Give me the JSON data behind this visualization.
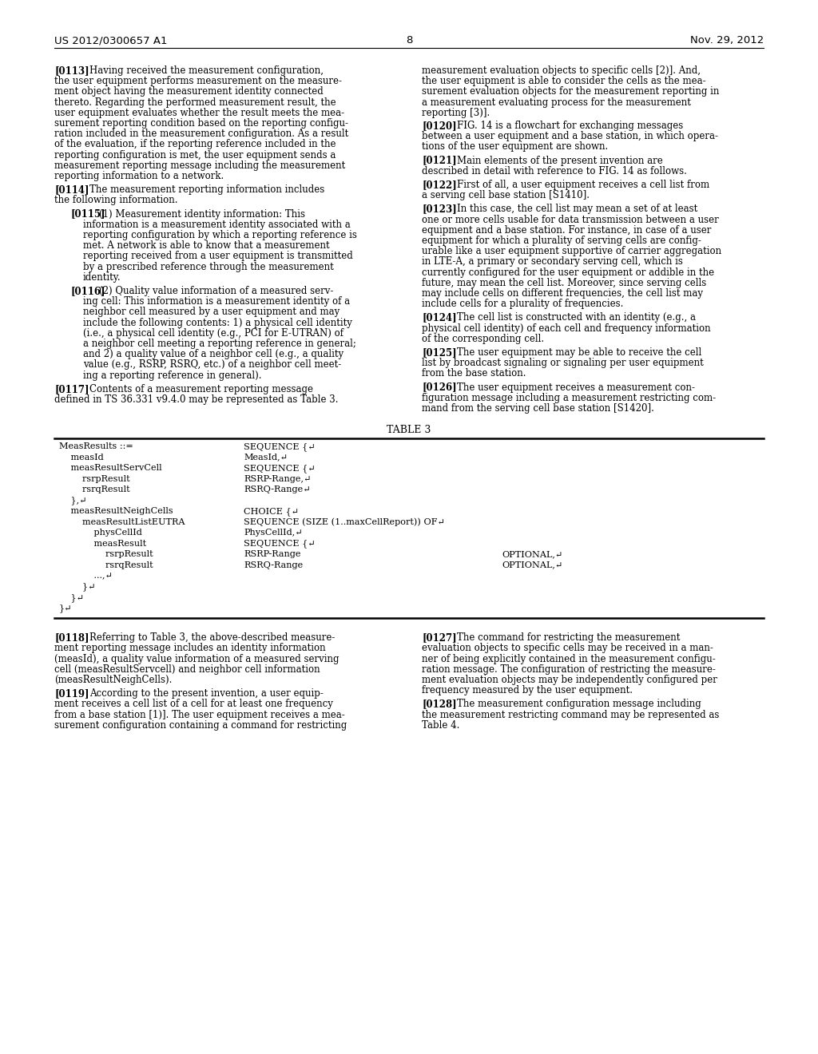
{
  "header_left": "US 2012/0300657 A1",
  "header_right": "Nov. 29, 2012",
  "page_number": "8",
  "left_column_prefix": [
    "measurement evaluation objects to specific cells [2)]. And,",
    "the user equipment is able to consider the cells as the mea-",
    "surement evaluation objects for the measurement reporting in",
    "a measurement evaluating process for the measurement",
    "reporting [3)]."
  ],
  "left_paragraphs": [
    {
      "tag": "[0113]",
      "indent": false,
      "lines": [
        "Having received the measurement configuration,",
        "the user equipment performs measurement on the measure-",
        "ment object having the measurement identity connected",
        "thereto. Regarding the performed measurement result, the",
        "user equipment evaluates whether the result meets the mea-",
        "surement reporting condition based on the reporting configu-",
        "ration included in the measurement configuration. As a result",
        "of the evaluation, if the reporting reference included in the",
        "reporting configuration is met, the user equipment sends a",
        "measurement reporting message including the measurement",
        "reporting information to a network."
      ]
    },
    {
      "tag": "[0114]",
      "indent": false,
      "lines": [
        "The measurement reporting information includes",
        "the following information."
      ]
    },
    {
      "tag": "[0115]",
      "indent": true,
      "lines": [
        "(1) Measurement identity information: This",
        "information is a measurement identity associated with a",
        "reporting configuration by which a reporting reference is",
        "met. A network is able to know that a measurement",
        "reporting received from a user equipment is transmitted",
        "by a prescribed reference through the measurement",
        "identity."
      ]
    },
    {
      "tag": "[0116]",
      "indent": true,
      "lines": [
        "(2) Quality value information of a measured serv-",
        "ing cell: This information is a measurement identity of a",
        "neighbor cell measured by a user equipment and may",
        "include the following contents: 1) a physical cell identity",
        "(i.e., a physical cell identity (e.g., PCI for E-UTRAN) of",
        "a neighbor cell meeting a reporting reference in general;",
        "and 2) a quality value of a neighbor cell (e.g., a quality",
        "value (e.g., RSRP, RSRQ, etc.) of a neighbor cell meet-",
        "ing a reporting reference in general)."
      ]
    },
    {
      "tag": "[0117]",
      "indent": false,
      "lines": [
        "Contents of a measurement reporting message",
        "defined in TS 36.331 v9.4.0 may be represented as Table 3."
      ]
    }
  ],
  "right_paragraphs": [
    {
      "tag": "",
      "indent": false,
      "lines": [
        "measurement evaluation objects to specific cells [2)]. And,",
        "the user equipment is able to consider the cells as the mea-",
        "surement evaluation objects for the measurement reporting in",
        "a measurement evaluating process for the measurement",
        "reporting [3)]."
      ]
    },
    {
      "tag": "[0120]",
      "indent": false,
      "lines": [
        "FIG. 14 is a flowchart for exchanging messages",
        "between a user equipment and a base station, in which opera-",
        "tions of the user equipment are shown."
      ]
    },
    {
      "tag": "[0121]",
      "indent": false,
      "lines": [
        "Main elements of the present invention are",
        "described in detail with reference to FIG. 14 as follows."
      ]
    },
    {
      "tag": "[0122]",
      "indent": false,
      "lines": [
        "First of all, a user equipment receives a cell list from",
        "a serving cell base station [S1410]."
      ]
    },
    {
      "tag": "[0123]",
      "indent": false,
      "lines": [
        "In this case, the cell list may mean a set of at least",
        "one or more cells usable for data transmission between a user",
        "equipment and a base station. For instance, in case of a user",
        "equipment for which a plurality of serving cells are config-",
        "urable like a user equipment supportive of carrier aggregation",
        "in LTE-A, a primary or secondary serving cell, which is",
        "currently configured for the user equipment or addible in the",
        "future, may mean the cell list. Moreover, since serving cells",
        "may include cells on different frequencies, the cell list may",
        "include cells for a plurality of frequencies."
      ]
    },
    {
      "tag": "[0124]",
      "indent": false,
      "lines": [
        "The cell list is constructed with an identity (e.g., a",
        "physical cell identity) of each cell and frequency information",
        "of the corresponding cell."
      ]
    },
    {
      "tag": "[0125]",
      "indent": false,
      "lines": [
        "The user equipment may be able to receive the cell",
        "list by broadcast signaling or signaling per user equipment",
        "from the base station."
      ]
    },
    {
      "tag": "[0126]",
      "indent": false,
      "lines": [
        "The user equipment receives a measurement con-",
        "figuration message including a measurement restricting com-",
        "mand from the serving cell base station [S1420]."
      ]
    }
  ],
  "table_title": "TABLE 3",
  "table_rows": [
    {
      "c1": "MeasResults ::=",
      "c2": "SEQUENCE {↵",
      "c3": ""
    },
    {
      "c1": "    measId",
      "c2": "MeasId,↵",
      "c3": ""
    },
    {
      "c1": "    measResultServCell",
      "c2": "SEQUENCE {↵",
      "c3": ""
    },
    {
      "c1": "        rsrpResult",
      "c2": "RSRP-Range,↵",
      "c3": ""
    },
    {
      "c1": "        rsrqResult",
      "c2": "RSRQ-Range↵",
      "c3": ""
    },
    {
      "c1": "    },↵",
      "c2": "",
      "c3": ""
    },
    {
      "c1": "    measResultNeighCells",
      "c2": "CHOICE {↵",
      "c3": ""
    },
    {
      "c1": "        measResultListEUTRA",
      "c2": "SEQUENCE (SIZE (1..maxCellReport)) OF↵",
      "c3": ""
    },
    {
      "c1": "            physCellId",
      "c2": "PhysCellId,↵",
      "c3": ""
    },
    {
      "c1": "            measResult",
      "c2": "SEQUENCE {↵",
      "c3": ""
    },
    {
      "c1": "                rsrpResult",
      "c2": "RSRP-Range",
      "c3": "OPTIONAL,↵"
    },
    {
      "c1": "                rsrqResult",
      "c2": "RSRQ-Range",
      "c3": "OPTIONAL,↵"
    },
    {
      "c1": "            ...,↵",
      "c2": "",
      "c3": ""
    },
    {
      "c1": "        }↵",
      "c2": "",
      "c3": ""
    },
    {
      "c1": "    }↵",
      "c2": "",
      "c3": ""
    },
    {
      "c1": "}↵",
      "c2": "",
      "c3": ""
    }
  ],
  "bottom_left_paragraphs": [
    {
      "tag": "[0118]",
      "indent": false,
      "lines": [
        "Referring to Table 3, the above-described measure-",
        "ment reporting message includes an identity information",
        "(measId), a quality value information of a measured serving",
        "cell (measResultServcell) and neighbor cell information",
        "(measResultNeighCells)."
      ]
    },
    {
      "tag": "[0119]",
      "indent": false,
      "lines": [
        "According to the present invention, a user equip-",
        "ment receives a cell list of a cell for at least one frequency",
        "from a base station [1)]. The user equipment receives a mea-",
        "surement configuration containing a command for restricting"
      ]
    }
  ],
  "bottom_right_paragraphs": [
    {
      "tag": "[0127]",
      "indent": false,
      "lines": [
        "The command for restricting the measurement",
        "evaluation objects to specific cells may be received in a man-",
        "ner of being explicitly contained in the measurement configu-",
        "ration message. The configuration of restricting the measure-",
        "ment evaluation objects may be independently configured per",
        "frequency measured by the user equipment."
      ]
    },
    {
      "tag": "[0128]",
      "indent": false,
      "lines": [
        "The measurement configuration message including",
        "the measurement restricting command may be represented as",
        "Table 4."
      ]
    }
  ]
}
